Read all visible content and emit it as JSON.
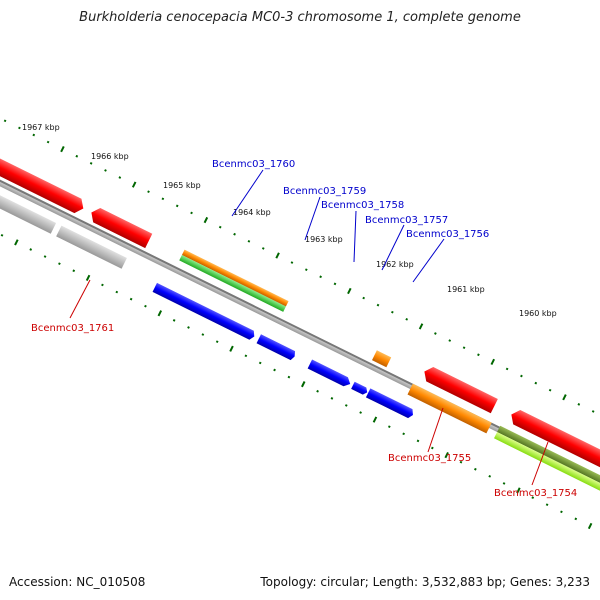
{
  "header": {
    "title": "Burkholderia cenocepacia MC0-3 chromosome 1, complete genome"
  },
  "footer": {
    "accession": "Accession: NC_010508",
    "info": "Topology: circular; Length: 3,532,883 bp; Genes: 3,233"
  },
  "colors": {
    "forward_gene": "#ff0000",
    "reverse_gene": "#0000ff",
    "label_forward": "#cc0000",
    "label_reverse": "#0000cc",
    "orange_feature": "#ff8800",
    "green_feature": "#33cc33",
    "grey_feature": "#bbbbbb",
    "olive_feature": "#669933",
    "lime_feature": "#aaff33",
    "backbone": "#888888",
    "tick": "#006600"
  },
  "scale": {
    "labels": [
      "1967 kbp",
      "1966 kbp",
      "1965 kbp",
      "1964 kbp",
      "1963 kbp",
      "1962 kbp",
      "1961 kbp",
      "1960 kbp"
    ]
  },
  "genes": {
    "g1761": "Bcenmc03_1761",
    "g1760": "Bcenmc03_1760",
    "g1759": "Bcenmc03_1759",
    "g1758": "Bcenmc03_1758",
    "g1757": "Bcenmc03_1757",
    "g1756": "Bcenmc03_1756",
    "g1755": "Bcenmc03_1755",
    "g1754": "Bcenmc03_1754"
  }
}
